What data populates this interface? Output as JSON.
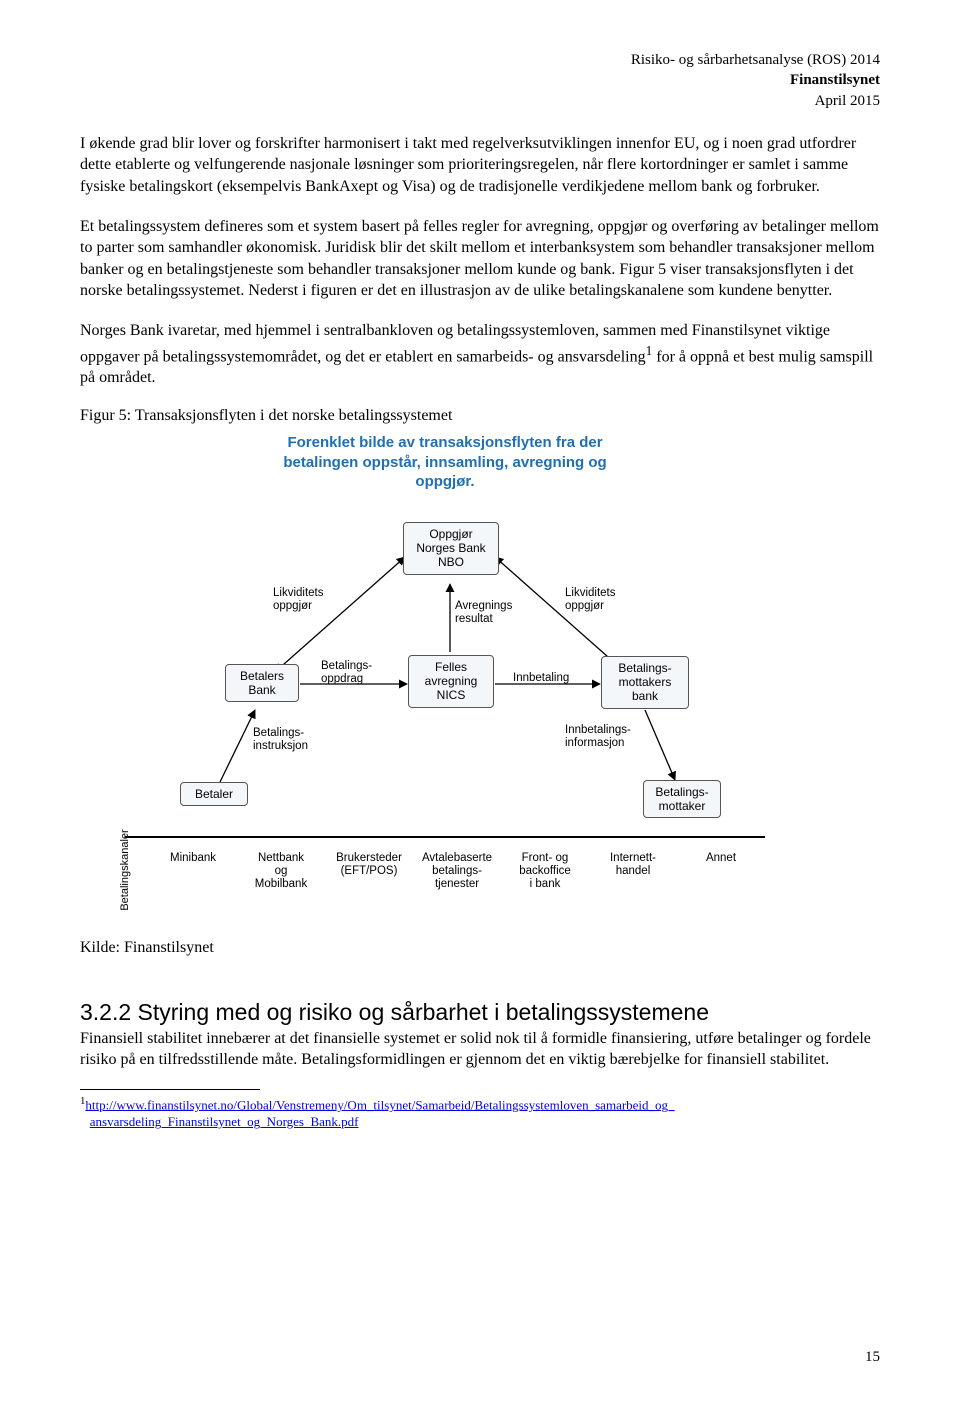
{
  "header": {
    "line1": "Risiko- og sårbarhetsanalyse (ROS) 2014",
    "line2": "Finanstilsynet",
    "line3": "April 2015"
  },
  "para1": "I økende grad blir lover og forskrifter harmonisert i takt med regelverksutviklingen innenfor EU, og i noen grad utfordrer dette etablerte og velfungerende nasjonale løsninger som prioriteringsregelen, når flere kortordninger er samlet i samme fysiske betalingskort (eksempelvis BankAxept og Visa) og de tradisjonelle verdikjedene mellom bank og forbruker.",
  "para2": "Et betalingssystem defineres som et system basert på felles regler for avregning, oppgjør og overføring av betalinger mellom to parter som samhandler økonomisk. Juridisk blir det skilt mellom et interbanksystem som behandler transaksjoner mellom banker og en betalingstjeneste som behandler transaksjoner mellom kunde og bank. Figur 5 viser transaksjonsflyten i det norske betalingssystemet. Nederst i figuren er det en illustrasjon av de ulike betalingskanalene som kundene benytter.",
  "para3_pre": "Norges Bank ivaretar, med hjemmel i sentralbankloven og betalingssystemloven, sammen med Finanstilsynet viktige oppgaver på betalingssystemområdet, og det er etablert en samarbeids- og ansvarsdeling",
  "para3_sup": "1",
  "para3_post": " for å oppnå et best mulig samspill på området.",
  "fig_caption": "Figur 5: Transaksjonsflyten i det norske betalingssystemet",
  "fig_title_l1": "Forenklet bilde av transaksjonsflyten fra der",
  "fig_title_l2": "betalingen oppstår, innsamling, avregning og",
  "fig_title_l3": "oppgjør.",
  "nodes": {
    "oppgjor": "Oppgjør\nNorges Bank\nNBO",
    "felles": "Felles\navregning\nNICS",
    "betalers_bank": "Betalers\nBank",
    "mottakers_bank": "Betalings-\nmottakers\nbank",
    "betaler": "Betaler",
    "mottaker": "Betalings-\nmottaker"
  },
  "edges": {
    "likv_l": "Likviditets\noppgjør",
    "likv_r": "Likviditets\noppgjør",
    "avregn": "Avregnings\nresultat",
    "bet_oppdrag": "Betalings-\noppdrag",
    "innbetaling": "Innbetaling",
    "bet_instr": "Betalings-\ninstruksjon",
    "innbet_info": "Innbetalings-\ninformasjon"
  },
  "channels_label": "Betalingskanaler",
  "channels": [
    "Minibank",
    "Nettbank\nog\nMobilbank",
    "Brukersteder\n(EFT/POS)",
    "Avtalebaserte\nbetalings-\ntjenester",
    "Front- og\nbackoffice\ni bank",
    "Internett-\nhandel",
    "Annet"
  ],
  "kilde": "Kilde: Finanstilsynet",
  "section_title": "3.2.2 Styring med og risiko og sårbarhet i betalingssystemene",
  "section_body": "Finansiell stabilitet innebærer at det finansielle systemet er solid nok til å formidle finansiering, utføre betalinger og fordele risiko på en tilfredsstillende måte. Betalingsformidlingen er gjennom det en viktig bærebjelke for finansiell stabilitet.",
  "footnote_sup": "1",
  "footnote_link1": "http://www.finanstilsynet.no/Global/Venstremeny/Om_tilsynet/Samarbeid/Betalingssystemloven_samarbeid_og_",
  "footnote_link2": "ansvarsdeling_Finanstilsynet_og_Norges_Bank.pdf",
  "pagenum": "15",
  "colors": {
    "link": "#0000EE",
    "fig_title": "#1f6fb2",
    "node_bg": "#f4f7f9",
    "node_border": "#555555"
  }
}
